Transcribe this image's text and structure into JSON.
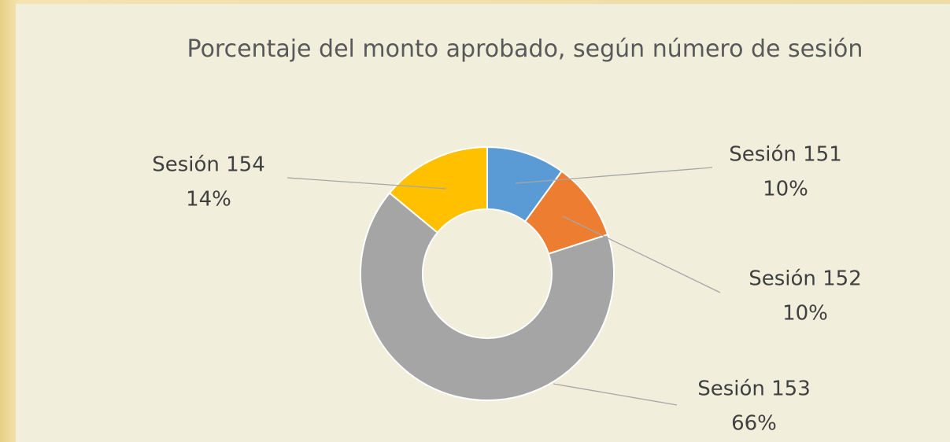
{
  "chart_data": {
    "type": "donut",
    "title": "Porcentaje del monto aprobado, según número de sesión",
    "categories": [
      "Sesión 151",
      "Sesión 152",
      "Sesión 153",
      "Sesión 154"
    ],
    "values": [
      10,
      10,
      66,
      14
    ],
    "value_labels": [
      "10%",
      "10%",
      "66%",
      "14%"
    ],
    "colors": [
      "#5b9bd5",
      "#ed7d31",
      "#a5a5a5",
      "#ffc000"
    ]
  }
}
